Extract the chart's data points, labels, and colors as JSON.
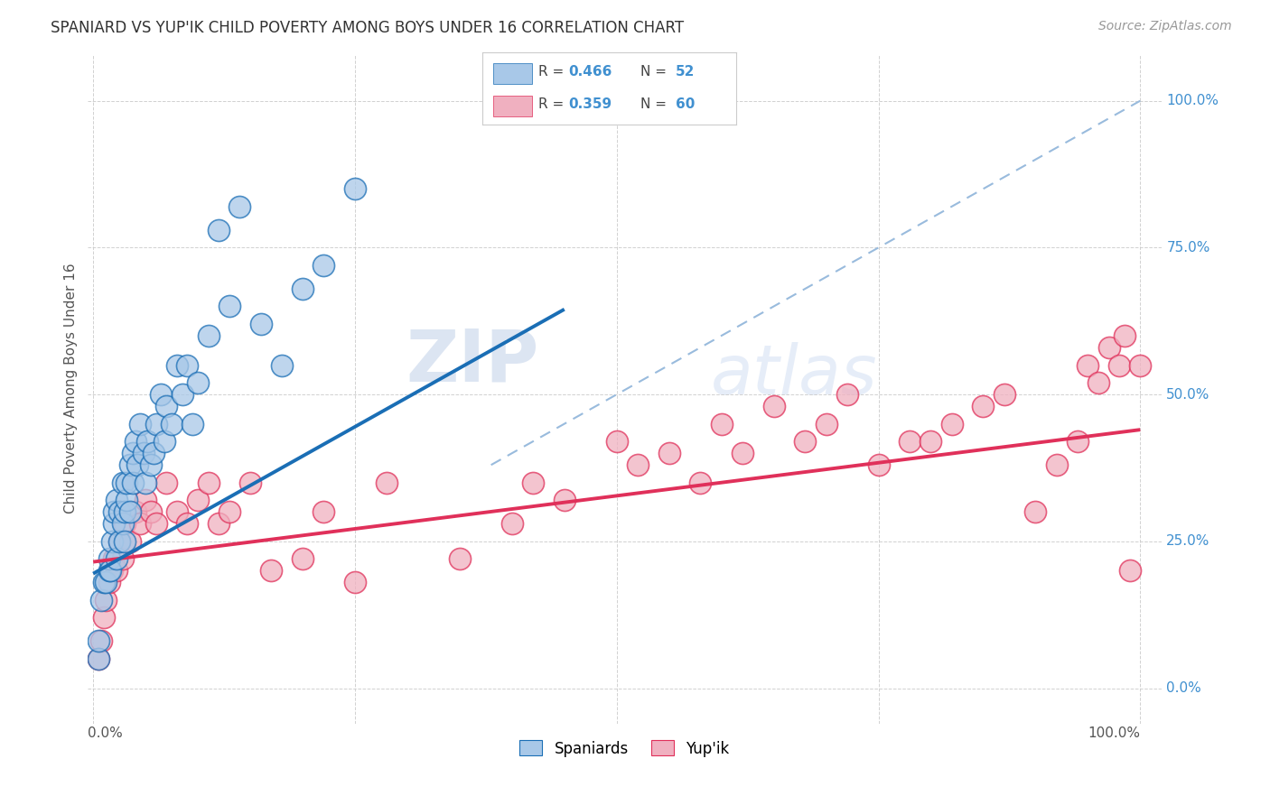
{
  "title": "SPANIARD VS YUP'IK CHILD POVERTY AMONG BOYS UNDER 16 CORRELATION CHART",
  "source": "Source: ZipAtlas.com",
  "ylabel": "Child Poverty Among Boys Under 16",
  "ytick_vals": [
    0.0,
    0.25,
    0.5,
    0.75,
    1.0
  ],
  "xtick_vals": [
    0.0,
    0.25,
    0.5,
    0.75,
    1.0
  ],
  "color_blue": "#a8c8e8",
  "color_pink": "#f0b0c0",
  "color_blue_line": "#1a6eb5",
  "color_pink_line": "#e0305a",
  "color_blue_label": "#4090d0",
  "watermark_color": "#c8d8ee",
  "spaniards_x": [
    0.005,
    0.005,
    0.008,
    0.01,
    0.012,
    0.015,
    0.015,
    0.016,
    0.018,
    0.02,
    0.02,
    0.022,
    0.022,
    0.025,
    0.025,
    0.028,
    0.028,
    0.03,
    0.03,
    0.032,
    0.032,
    0.035,
    0.035,
    0.038,
    0.038,
    0.04,
    0.042,
    0.045,
    0.048,
    0.05,
    0.052,
    0.055,
    0.058,
    0.06,
    0.065,
    0.068,
    0.07,
    0.075,
    0.08,
    0.085,
    0.09,
    0.095,
    0.1,
    0.11,
    0.12,
    0.13,
    0.14,
    0.16,
    0.18,
    0.2,
    0.22,
    0.25
  ],
  "spaniards_y": [
    0.05,
    0.08,
    0.15,
    0.18,
    0.18,
    0.2,
    0.22,
    0.2,
    0.25,
    0.28,
    0.3,
    0.22,
    0.32,
    0.25,
    0.3,
    0.28,
    0.35,
    0.3,
    0.25,
    0.32,
    0.35,
    0.38,
    0.3,
    0.35,
    0.4,
    0.42,
    0.38,
    0.45,
    0.4,
    0.35,
    0.42,
    0.38,
    0.4,
    0.45,
    0.5,
    0.42,
    0.48,
    0.45,
    0.55,
    0.5,
    0.55,
    0.45,
    0.52,
    0.6,
    0.78,
    0.65,
    0.82,
    0.62,
    0.55,
    0.68,
    0.72,
    0.85
  ],
  "yupik_x": [
    0.005,
    0.008,
    0.01,
    0.012,
    0.015,
    0.018,
    0.02,
    0.022,
    0.025,
    0.028,
    0.03,
    0.035,
    0.04,
    0.045,
    0.05,
    0.055,
    0.06,
    0.07,
    0.08,
    0.09,
    0.1,
    0.11,
    0.12,
    0.13,
    0.15,
    0.17,
    0.2,
    0.22,
    0.25,
    0.28,
    0.35,
    0.4,
    0.42,
    0.45,
    0.5,
    0.52,
    0.55,
    0.58,
    0.6,
    0.62,
    0.65,
    0.68,
    0.7,
    0.72,
    0.75,
    0.78,
    0.8,
    0.82,
    0.85,
    0.87,
    0.9,
    0.92,
    0.94,
    0.95,
    0.96,
    0.97,
    0.98,
    0.985,
    0.99,
    1.0
  ],
  "yupik_y": [
    0.05,
    0.08,
    0.12,
    0.15,
    0.18,
    0.2,
    0.22,
    0.2,
    0.25,
    0.22,
    0.28,
    0.25,
    0.3,
    0.28,
    0.32,
    0.3,
    0.28,
    0.35,
    0.3,
    0.28,
    0.32,
    0.35,
    0.28,
    0.3,
    0.35,
    0.2,
    0.22,
    0.3,
    0.18,
    0.35,
    0.22,
    0.28,
    0.35,
    0.32,
    0.42,
    0.38,
    0.4,
    0.35,
    0.45,
    0.4,
    0.48,
    0.42,
    0.45,
    0.5,
    0.38,
    0.42,
    0.42,
    0.45,
    0.48,
    0.5,
    0.3,
    0.38,
    0.42,
    0.55,
    0.52,
    0.58,
    0.55,
    0.6,
    0.2,
    0.55
  ],
  "sp_line_x0": 0.0,
  "sp_line_x1": 0.45,
  "sp_line_y0": 0.195,
  "sp_line_y1": 0.645,
  "yu_line_x0": 0.0,
  "yu_line_x1": 1.0,
  "yu_line_y0": 0.215,
  "yu_line_y1": 0.44,
  "dash_line_x0": 0.38,
  "dash_line_x1": 1.0,
  "dash_line_y0": 0.38,
  "dash_line_y1": 1.0
}
